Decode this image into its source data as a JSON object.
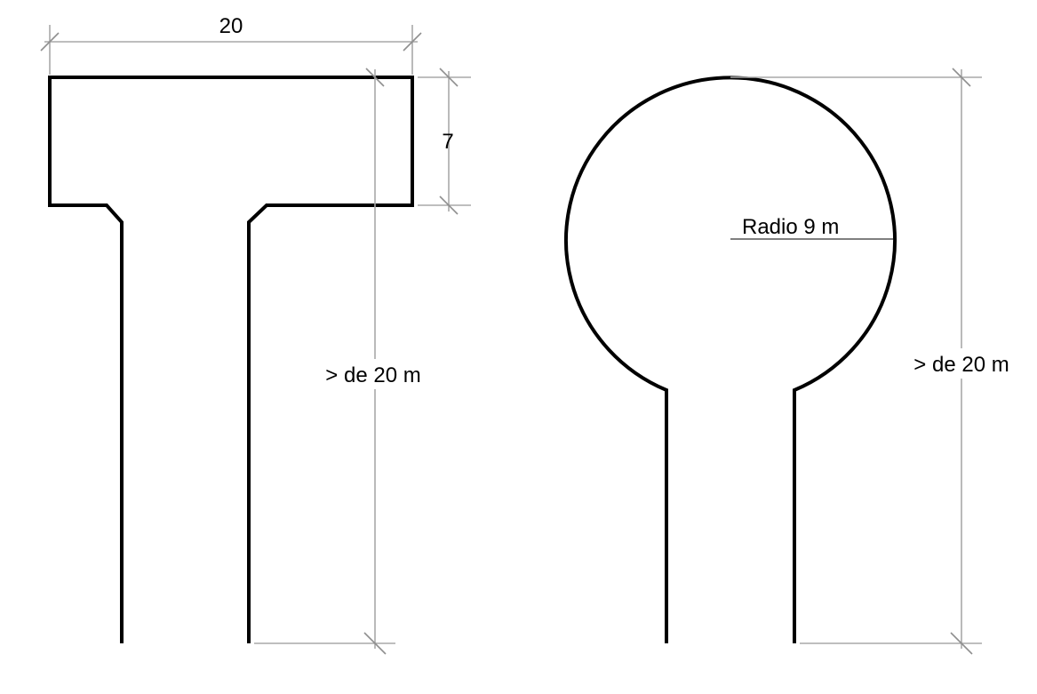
{
  "diagram": {
    "colors": {
      "outline": "#000000",
      "dimension_line": "#a8a8a8",
      "text": "#000000",
      "background": "#ffffff"
    },
    "t_shape": {
      "top_width_label": "20",
      "top_height_label": "7",
      "total_height_label": "> de 20 m"
    },
    "round_shape": {
      "radius_label": "Radio 9 m",
      "total_height_label": "> de 20 m"
    }
  }
}
